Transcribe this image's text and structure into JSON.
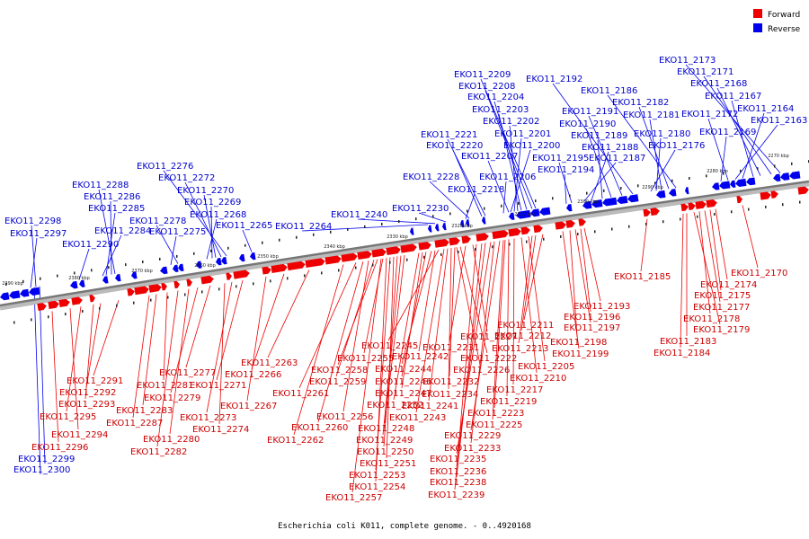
{
  "caption": "Escherichia coli K011, complete genome. - 0..4920168",
  "legend": {
    "forward_label": "Forward",
    "reverse_label": "Reverse"
  },
  "colors": {
    "forward": "#ee0000",
    "reverse": "#0000ee",
    "backbone": "#888888"
  },
  "ticks": [
    "2390 kbp",
    "2380 kbp",
    "2370 kbp",
    "2360 kbp",
    "2350 kbp",
    "2340 kbp",
    "2330 kbp",
    "2320 kbp",
    "2310 kbp",
    "2300 kbp",
    "2290 kbp",
    "2280 kbp",
    "2270 kbp"
  ],
  "reverse_labels": [
    "EKO11_2173",
    "EKO11_2171",
    "EKO11_2168",
    "EKO11_2167",
    "EKO11_2164",
    "EKO11_2163",
    "EKO11_2172",
    "EKO11_2169",
    "EKO11_2186",
    "EKO11_2182",
    "EKO11_2181",
    "EKO11_2180",
    "EKO11_2176",
    "EKO11_2192",
    "EKO11_2191",
    "EKO11_2190",
    "EKO11_2189",
    "EKO11_2188",
    "EKO11_2187",
    "EKO11_2195",
    "EKO11_2194",
    "EKO11_2209",
    "EKO11_2208",
    "EKO11_2204",
    "EKO11_2203",
    "EKO11_2202",
    "EKO11_2201",
    "EKO11_2200",
    "EKO11_2207",
    "EKO11_2206",
    "EKO11_2221",
    "EKO11_2220",
    "EKO11_2228",
    "EKO11_2218",
    "EKO11_2230",
    "EKO11_2240",
    "EKO11_2264",
    "EKO11_2265",
    "EKO11_2276",
    "EKO11_2272",
    "EKO11_2270",
    "EKO11_2269",
    "EKO11_2268",
    "EKO11_2278",
    "EKO11_2275",
    "EKO11_2288",
    "EKO11_2286",
    "EKO11_2285",
    "EKO11_2284",
    "EKO11_2290",
    "EKO11_2298",
    "EKO11_2297",
    "EKO11_2299",
    "EKO11_2300"
  ],
  "forward_labels": [
    "EKO11_2170",
    "EKO11_2174",
    "EKO11_2175",
    "EKO11_2177",
    "EKO11_2178",
    "EKO11_2179",
    "EKO11_2183",
    "EKO11_2184",
    "EKO11_2185",
    "EKO11_2193",
    "EKO11_2196",
    "EKO11_2197",
    "EKO11_2198",
    "EKO11_2199",
    "EKO11_2211",
    "EKO11_2212",
    "EKO11_2213",
    "EKO11_2205",
    "EKO11_2210",
    "EKO11_2217",
    "EKO11_2219",
    "EKO11_2223",
    "EKO11_2225",
    "EKO11_2229",
    "EKO11_2233",
    "EKO11_2235",
    "EKO11_2236",
    "EKO11_2238",
    "EKO11_2239",
    "EKO11_2227",
    "EKO11_2231",
    "EKO11_2222",
    "EKO11_2226",
    "EKO11_2232",
    "EKO11_2234",
    "EKO11_2241",
    "EKO11_2243",
    "EKO11_2245",
    "EKO11_2242",
    "EKO11_2244",
    "EKO11_2246",
    "EKO11_2247",
    "EKO11_2252",
    "EKO11_2248",
    "EKO11_2249",
    "EKO11_2250",
    "EKO11_2251",
    "EKO11_2253",
    "EKO11_2254",
    "EKO11_2257",
    "EKO11_2255",
    "EKO11_2258",
    "EKO11_2259",
    "EKO11_2256",
    "EKO11_2260",
    "EKO11_2261",
    "EKO11_2262",
    "EKO11_2263",
    "EKO11_2266",
    "EKO11_2267",
    "EKO11_2271",
    "EKO11_2273",
    "EKO11_2274",
    "EKO11_2277",
    "EKO11_2279",
    "EKO11_2280",
    "EKO11_2282",
    "EKO11_2281",
    "EKO11_2283",
    "EKO11_2287",
    "EKO11_2291",
    "EKO11_2292",
    "EKO11_2293",
    "EKO11_2295",
    "EKO11_2294",
    "EKO11_2296"
  ]
}
